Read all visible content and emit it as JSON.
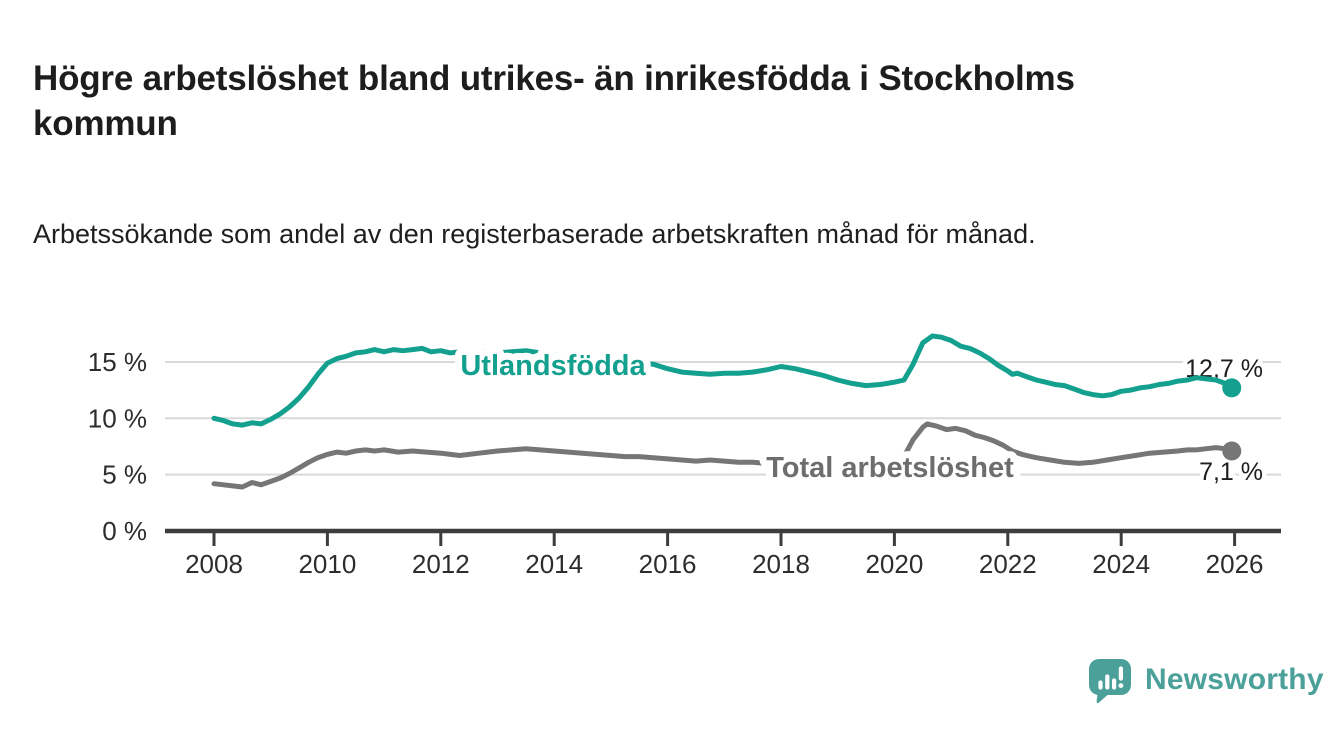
{
  "header": {
    "title": "Högre arbetslöshet bland utrikes- än inrikesfödda i Stockholms kommun",
    "subtitle": "Arbetssökande som andel av den registerbaserade arbetskraften månad för månad."
  },
  "footer": {
    "brand_name": "Newsworthy",
    "brand_color": "#4ba09a",
    "logo_icon": "bar-chart-speech-bubble-icon"
  },
  "chart_data": {
    "type": "line",
    "title": "",
    "xlabel": "",
    "ylabel": "",
    "grid": "horizontal",
    "background": "#ffffff",
    "gridline_color": "#d9d9d9",
    "axis_color": "#3d3d3d",
    "x_axis": {
      "range": [
        2007.1,
        2026.8
      ],
      "tick_values": [
        2008,
        2010,
        2012,
        2014,
        2016,
        2018,
        2020,
        2022,
        2024,
        2026
      ],
      "tick_labels": [
        "2008",
        "2010",
        "2012",
        "2014",
        "2016",
        "2018",
        "2020",
        "2022",
        "2024",
        "2026"
      ]
    },
    "y_axis": {
      "range": [
        0,
        18.5
      ],
      "tick_values": [
        0,
        5,
        10,
        15
      ],
      "tick_labels": [
        "0 %",
        "5 %",
        "10 %",
        "15 %"
      ]
    },
    "series": [
      {
        "name": "Utlandsfödda",
        "color": "#13a08e",
        "end_label": "12,7 %",
        "end_value": 12.7,
        "points": [
          [
            2008.0,
            10.0
          ],
          [
            2008.17,
            9.8
          ],
          [
            2008.33,
            9.5
          ],
          [
            2008.5,
            9.4
          ],
          [
            2008.67,
            9.6
          ],
          [
            2008.83,
            9.5
          ],
          [
            2009.0,
            9.9
          ],
          [
            2009.17,
            10.4
          ],
          [
            2009.33,
            11.0
          ],
          [
            2009.5,
            11.8
          ],
          [
            2009.67,
            12.8
          ],
          [
            2009.83,
            13.9
          ],
          [
            2010.0,
            14.9
          ],
          [
            2010.17,
            15.3
          ],
          [
            2010.33,
            15.5
          ],
          [
            2010.5,
            15.8
          ],
          [
            2010.67,
            15.9
          ],
          [
            2010.83,
            16.1
          ],
          [
            2011.0,
            15.9
          ],
          [
            2011.17,
            16.1
          ],
          [
            2011.33,
            16.0
          ],
          [
            2011.5,
            16.1
          ],
          [
            2011.67,
            16.2
          ],
          [
            2011.83,
            15.9
          ],
          [
            2012.0,
            16.0
          ],
          [
            2012.17,
            15.8
          ],
          [
            2012.33,
            15.9
          ],
          [
            2012.5,
            15.8
          ],
          [
            2012.75,
            15.9
          ],
          [
            2013.0,
            15.8
          ],
          [
            2013.25,
            15.9
          ],
          [
            2013.5,
            16.0
          ],
          [
            2013.75,
            15.8
          ],
          [
            2014.0,
            15.6
          ],
          [
            2014.25,
            15.5
          ],
          [
            2014.5,
            15.4
          ],
          [
            2014.75,
            15.2
          ],
          [
            2015.0,
            15.1
          ],
          [
            2015.25,
            15.0
          ],
          [
            2015.5,
            14.9
          ],
          [
            2015.75,
            14.8
          ],
          [
            2016.0,
            14.4
          ],
          [
            2016.25,
            14.1
          ],
          [
            2016.5,
            14.0
          ],
          [
            2016.75,
            13.9
          ],
          [
            2017.0,
            14.0
          ],
          [
            2017.25,
            14.0
          ],
          [
            2017.5,
            14.1
          ],
          [
            2017.75,
            14.3
          ],
          [
            2018.0,
            14.6
          ],
          [
            2018.25,
            14.4
          ],
          [
            2018.5,
            14.1
          ],
          [
            2018.75,
            13.8
          ],
          [
            2019.0,
            13.4
          ],
          [
            2019.25,
            13.1
          ],
          [
            2019.5,
            12.9
          ],
          [
            2019.75,
            13.0
          ],
          [
            2020.0,
            13.2
          ],
          [
            2020.17,
            13.4
          ],
          [
            2020.33,
            14.8
          ],
          [
            2020.5,
            16.7
          ],
          [
            2020.67,
            17.3
          ],
          [
            2020.83,
            17.2
          ],
          [
            2021.0,
            16.9
          ],
          [
            2021.17,
            16.4
          ],
          [
            2021.33,
            16.2
          ],
          [
            2021.5,
            15.8
          ],
          [
            2021.67,
            15.3
          ],
          [
            2021.83,
            14.7
          ],
          [
            2022.0,
            14.2
          ],
          [
            2022.08,
            13.9
          ],
          [
            2022.17,
            14.0
          ],
          [
            2022.33,
            13.7
          ],
          [
            2022.5,
            13.4
          ],
          [
            2022.67,
            13.2
          ],
          [
            2022.83,
            13.0
          ],
          [
            2023.0,
            12.9
          ],
          [
            2023.17,
            12.6
          ],
          [
            2023.33,
            12.3
          ],
          [
            2023.5,
            12.1
          ],
          [
            2023.67,
            12.0
          ],
          [
            2023.83,
            12.1
          ],
          [
            2024.0,
            12.4
          ],
          [
            2024.17,
            12.5
          ],
          [
            2024.33,
            12.7
          ],
          [
            2024.5,
            12.8
          ],
          [
            2024.67,
            13.0
          ],
          [
            2024.83,
            13.1
          ],
          [
            2025.0,
            13.3
          ],
          [
            2025.17,
            13.4
          ],
          [
            2025.33,
            13.6
          ],
          [
            2025.5,
            13.5
          ],
          [
            2025.67,
            13.4
          ],
          [
            2025.83,
            13.1
          ],
          [
            2025.95,
            12.7
          ]
        ]
      },
      {
        "name": "Total arbetslöshet",
        "color": "#767676",
        "label_color": "#6d6d6d",
        "end_label": "7,1 %",
        "end_value": 7.1,
        "points": [
          [
            2008.0,
            4.2
          ],
          [
            2008.17,
            4.1
          ],
          [
            2008.33,
            4.0
          ],
          [
            2008.5,
            3.9
          ],
          [
            2008.67,
            4.3
          ],
          [
            2008.83,
            4.1
          ],
          [
            2009.0,
            4.4
          ],
          [
            2009.17,
            4.7
          ],
          [
            2009.33,
            5.1
          ],
          [
            2009.5,
            5.6
          ],
          [
            2009.67,
            6.1
          ],
          [
            2009.83,
            6.5
          ],
          [
            2010.0,
            6.8
          ],
          [
            2010.17,
            7.0
          ],
          [
            2010.33,
            6.9
          ],
          [
            2010.5,
            7.1
          ],
          [
            2010.67,
            7.2
          ],
          [
            2010.83,
            7.1
          ],
          [
            2011.0,
            7.2
          ],
          [
            2011.25,
            7.0
          ],
          [
            2011.5,
            7.1
          ],
          [
            2011.75,
            7.0
          ],
          [
            2012.0,
            6.9
          ],
          [
            2012.17,
            6.8
          ],
          [
            2012.33,
            6.7
          ],
          [
            2012.5,
            6.8
          ],
          [
            2012.67,
            6.9
          ],
          [
            2012.83,
            7.0
          ],
          [
            2013.0,
            7.1
          ],
          [
            2013.25,
            7.2
          ],
          [
            2013.5,
            7.3
          ],
          [
            2013.75,
            7.2
          ],
          [
            2014.0,
            7.1
          ],
          [
            2014.25,
            7.0
          ],
          [
            2014.5,
            6.9
          ],
          [
            2014.75,
            6.8
          ],
          [
            2015.0,
            6.7
          ],
          [
            2015.25,
            6.6
          ],
          [
            2015.5,
            6.6
          ],
          [
            2015.75,
            6.5
          ],
          [
            2016.0,
            6.4
          ],
          [
            2016.25,
            6.3
          ],
          [
            2016.5,
            6.2
          ],
          [
            2016.75,
            6.3
          ],
          [
            2017.0,
            6.2
          ],
          [
            2017.25,
            6.1
          ],
          [
            2017.5,
            6.1
          ],
          [
            2017.75,
            6.0
          ],
          [
            2018.0,
            6.0
          ],
          [
            2018.25,
            5.9
          ],
          [
            2018.5,
            5.8
          ],
          [
            2018.75,
            5.8
          ],
          [
            2019.0,
            5.7
          ],
          [
            2019.25,
            5.6
          ],
          [
            2019.5,
            5.6
          ],
          [
            2019.75,
            5.7
          ],
          [
            2020.0,
            6.0
          ],
          [
            2020.17,
            6.6
          ],
          [
            2020.33,
            8.1
          ],
          [
            2020.5,
            9.2
          ],
          [
            2020.58,
            9.5
          ],
          [
            2020.75,
            9.3
          ],
          [
            2020.92,
            9.0
          ],
          [
            2021.08,
            9.1
          ],
          [
            2021.25,
            8.9
          ],
          [
            2021.42,
            8.5
          ],
          [
            2021.58,
            8.3
          ],
          [
            2021.75,
            8.0
          ],
          [
            2021.92,
            7.6
          ],
          [
            2022.08,
            7.1
          ],
          [
            2022.25,
            6.8
          ],
          [
            2022.5,
            6.5
          ],
          [
            2022.75,
            6.3
          ],
          [
            2023.0,
            6.1
          ],
          [
            2023.25,
            6.0
          ],
          [
            2023.5,
            6.1
          ],
          [
            2023.75,
            6.3
          ],
          [
            2024.0,
            6.5
          ],
          [
            2024.25,
            6.7
          ],
          [
            2024.5,
            6.9
          ],
          [
            2024.75,
            7.0
          ],
          [
            2025.0,
            7.1
          ],
          [
            2025.17,
            7.2
          ],
          [
            2025.33,
            7.2
          ],
          [
            2025.5,
            7.3
          ],
          [
            2025.67,
            7.4
          ],
          [
            2025.83,
            7.3
          ],
          [
            2025.95,
            7.1
          ]
        ]
      }
    ],
    "legend": "inline-labels"
  }
}
